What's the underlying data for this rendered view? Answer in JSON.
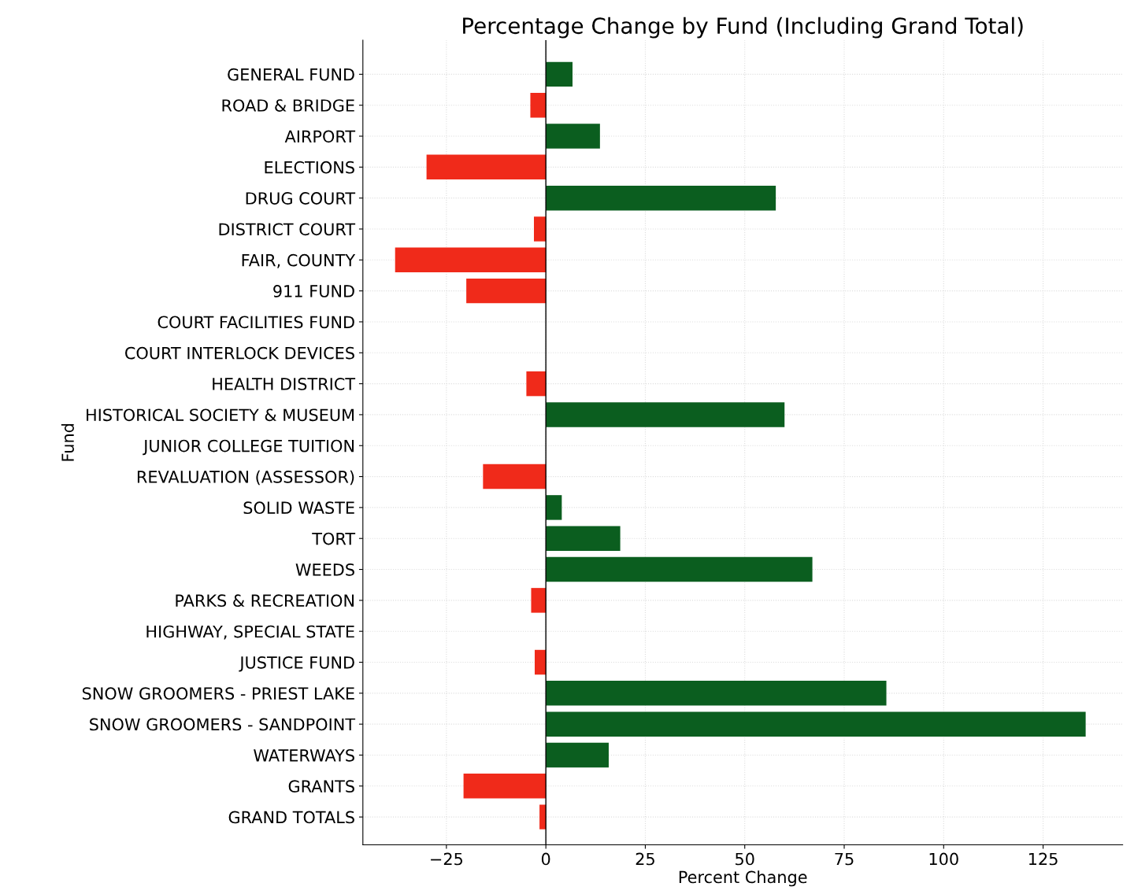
{
  "chart_data": {
    "type": "bar",
    "orientation": "horizontal",
    "title": "Percentage Change by Fund (Including Grand Total)",
    "xlabel": "Percent Change",
    "ylabel": "Fund",
    "categories": [
      "GENERAL FUND",
      "ROAD & BRIDGE",
      "AIRPORT",
      "ELECTIONS",
      "DRUG COURT",
      "DISTRICT COURT",
      "FAIR, COUNTY",
      "911 FUND",
      "COURT FACILITIES FUND",
      "COURT INTERLOCK DEVICES",
      "HEALTH DISTRICT",
      "HISTORICAL SOCIETY & MUSEUM",
      "JUNIOR COLLEGE TUITION",
      "REVALUATION (ASSESSOR)",
      "SOLID WASTE",
      "TORT",
      "WEEDS",
      "PARKS & RECREATION",
      "HIGHWAY, SPECIAL STATE",
      "JUSTICE FUND",
      "SNOW GROOMERS - PRIEST LAKE",
      "SNOW GROOMERS - SANDPOINT",
      "WATERWAYS",
      "GRANTS",
      "GRAND TOTALS"
    ],
    "values": [
      6.7,
      -3.9,
      13.6,
      -30,
      57.8,
      -3,
      -37.9,
      -20,
      0,
      0,
      -4.9,
      60,
      0,
      -15.8,
      4,
      18.7,
      67,
      -3.7,
      0,
      -2.8,
      85.6,
      135.7,
      15.8,
      -20.7,
      -1.6
    ],
    "colors": [
      "#0b5e1f",
      "#f02a1a",
      "#0b5e1f",
      "#f02a1a",
      "#0b5e1f",
      "#f02a1a",
      "#f02a1a",
      "#f02a1a",
      "#0b5e1f",
      "#0b5e1f",
      "#f02a1a",
      "#0b5e1f",
      "#0b5e1f",
      "#f02a1a",
      "#0b5e1f",
      "#0b5e1f",
      "#0b5e1f",
      "#f02a1a",
      "#0b5e1f",
      "#f02a1a",
      "#0b5e1f",
      "#0b5e1f",
      "#0b5e1f",
      "#f02a1a",
      "#f02a1a"
    ],
    "xlim": [
      -46,
      145
    ],
    "xticks": [
      {
        "value": -25,
        "label": "−25"
      },
      0,
      25,
      50,
      75,
      100,
      125
    ],
    "ref_lines": [
      {
        "axis": "x",
        "value": 0,
        "color": "#000000"
      }
    ],
    "grid": true
  }
}
